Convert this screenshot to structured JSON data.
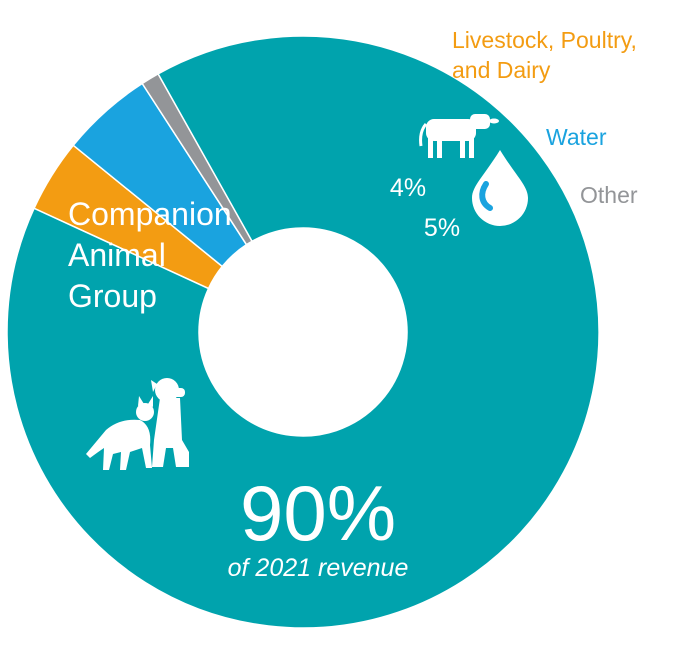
{
  "chart_data": {
    "type": "pie",
    "categories": [
      "Companion Animal Group",
      "Livestock, Poultry, and Dairy",
      "Water",
      "Other"
    ],
    "values": [
      90,
      4,
      5,
      1
    ],
    "slice_labels": [
      "90%",
      "4%",
      "5%",
      ""
    ],
    "center_value": "90%",
    "center_caption": "of 2021 revenue",
    "colors": [
      "#00A3AD",
      "#F39C12",
      "#1AA3DF",
      "#939598"
    ]
  },
  "labels": {
    "companion_line1": "Companion",
    "companion_line2": "Animal",
    "companion_line3": "Group",
    "livestock_line1": "Livestock, Poultry,",
    "livestock_line2": "and Dairy",
    "water": "Water",
    "other": "Other"
  },
  "icons": {
    "companion": "cat-and-dog-icon",
    "livestock": "cow-icon",
    "water": "water-drop-icon"
  }
}
